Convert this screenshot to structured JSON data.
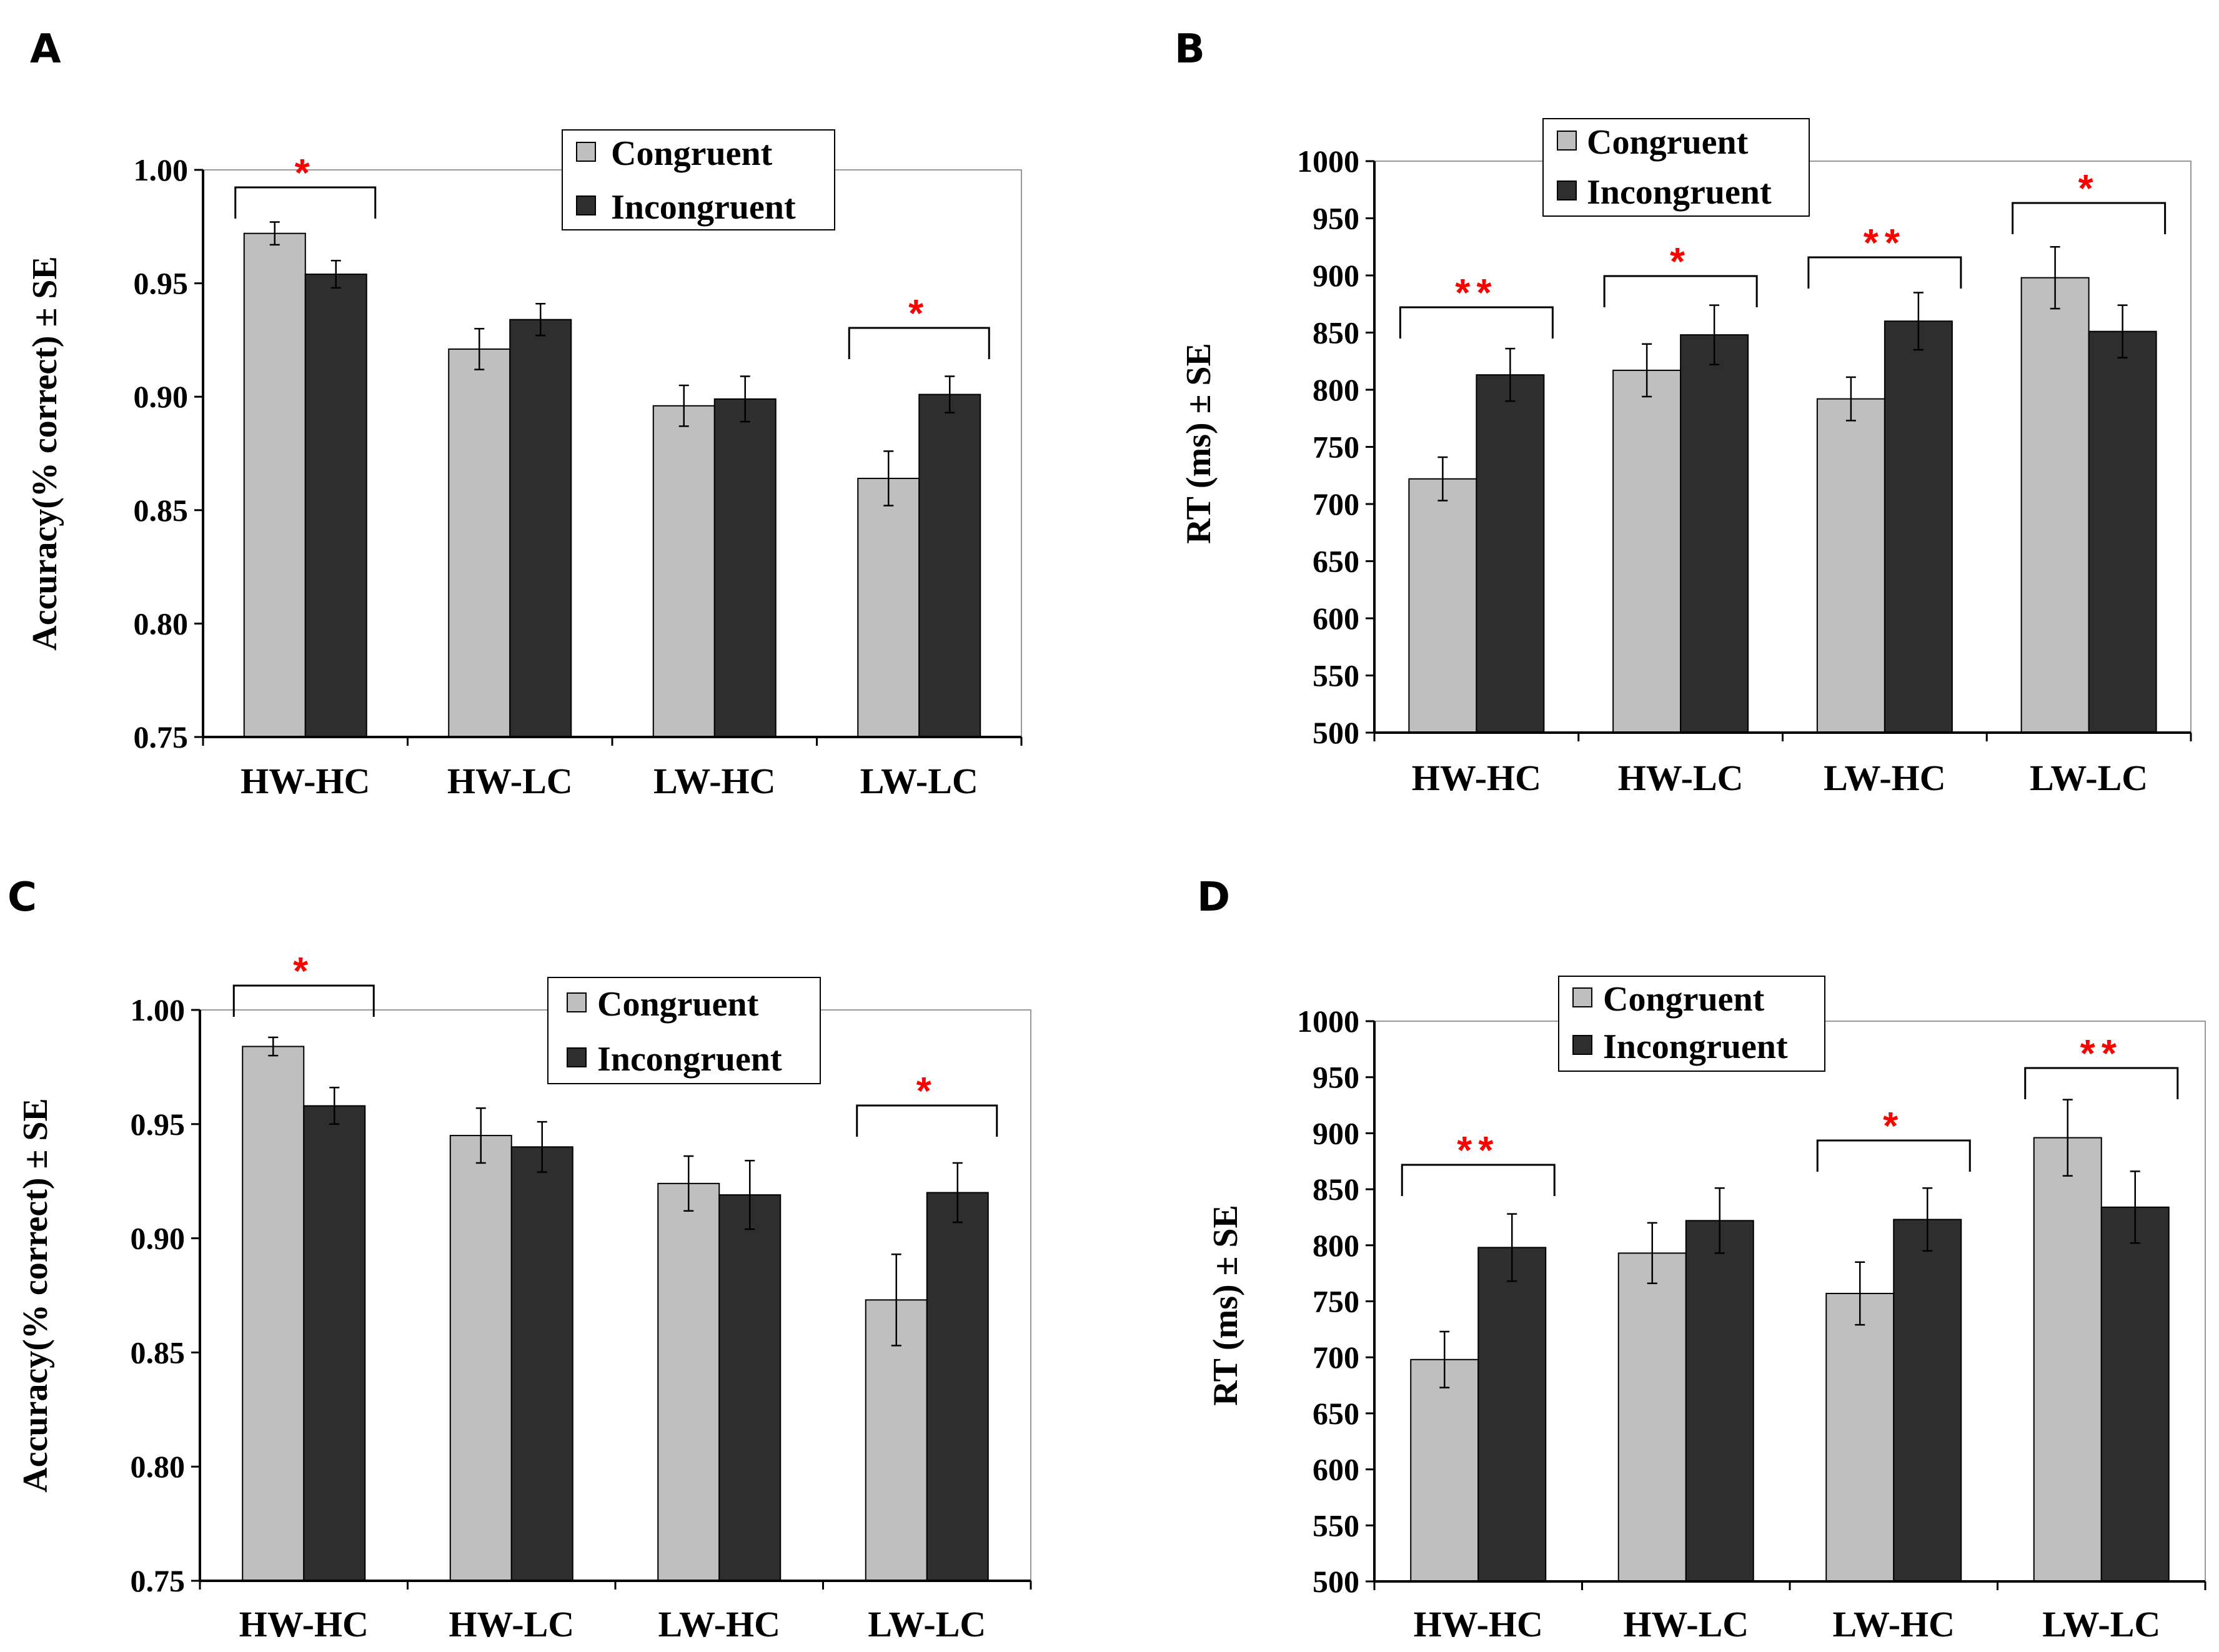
{
  "colors": {
    "congruent": "#bfbfbf",
    "incongruent": "#2e2e2e",
    "significance": "#ff0000",
    "axis": "#000000",
    "plot_border": "#999999"
  },
  "chart_data": [
    {
      "panel": "A",
      "type": "bar",
      "categories": [
        "HW-HC",
        "HW-LC",
        "LW-HC",
        "LW-LC"
      ],
      "ylabel": "Accuracy(% correct) ± SE",
      "ylim": [
        0.75,
        1.0
      ],
      "yticks": [
        "0.75",
        "0.80",
        "0.85",
        "0.90",
        "0.95",
        "1.00"
      ],
      "legend_position": "top-right",
      "series": [
        {
          "name": "Congruent",
          "values": [
            0.972,
            0.921,
            0.896,
            0.864
          ],
          "errors": [
            0.005,
            0.009,
            0.009,
            0.012
          ]
        },
        {
          "name": "Incongruent",
          "values": [
            0.954,
            0.934,
            0.899,
            0.901
          ],
          "errors": [
            0.006,
            0.007,
            0.01,
            0.008
          ]
        }
      ],
      "significance": [
        {
          "category": 0,
          "label": "*"
        },
        {
          "category": 3,
          "label": "*"
        }
      ]
    },
    {
      "panel": "B",
      "type": "bar",
      "categories": [
        "HW-HC",
        "HW-LC",
        "LW-HC",
        "LW-LC"
      ],
      "ylabel": "RT (ms) ± SE",
      "ylim": [
        500,
        1000
      ],
      "yticks": [
        "500",
        "550",
        "600",
        "650",
        "700",
        "750",
        "800",
        "850",
        "900",
        "950",
        "1000"
      ],
      "legend_position": "top-left",
      "series": [
        {
          "name": "Congruent",
          "values": [
            722,
            817,
            792,
            898
          ],
          "errors": [
            19,
            23,
            19,
            27
          ]
        },
        {
          "name": "Incongruent",
          "values": [
            813,
            848,
            860,
            851
          ],
          "errors": [
            23,
            26,
            25,
            23
          ]
        }
      ],
      "significance": [
        {
          "category": 0,
          "label": "**"
        },
        {
          "category": 1,
          "label": "*"
        },
        {
          "category": 2,
          "label": "**"
        },
        {
          "category": 3,
          "label": "*"
        }
      ]
    },
    {
      "panel": "C",
      "type": "bar",
      "categories": [
        "HW-HC",
        "HW-LC",
        "LW-HC",
        "LW-LC"
      ],
      "ylabel": "Accuracy(% correct) ± SE",
      "ylim": [
        0.75,
        1.0
      ],
      "yticks": [
        "0.75",
        "0.80",
        "0.85",
        "0.90",
        "0.95",
        "1.00"
      ],
      "legend_position": "top-right",
      "series": [
        {
          "name": "Congruent",
          "values": [
            0.984,
            0.945,
            0.924,
            0.873
          ],
          "errors": [
            0.004,
            0.012,
            0.012,
            0.02
          ]
        },
        {
          "name": "Incongruent",
          "values": [
            0.958,
            0.94,
            0.919,
            0.92
          ],
          "errors": [
            0.008,
            0.011,
            0.015,
            0.013
          ]
        }
      ],
      "significance": [
        {
          "category": 0,
          "label": "*"
        },
        {
          "category": 3,
          "label": "*"
        }
      ]
    },
    {
      "panel": "D",
      "type": "bar",
      "categories": [
        "HW-HC",
        "HW-LC",
        "LW-HC",
        "LW-LC"
      ],
      "ylabel": "RT (ms) ± SE",
      "ylim": [
        500,
        1000
      ],
      "yticks": [
        "500",
        "550",
        "600",
        "650",
        "700",
        "750",
        "800",
        "850",
        "900",
        "950",
        "1000"
      ],
      "legend_position": "top-left",
      "series": [
        {
          "name": "Congruent",
          "values": [
            698,
            793,
            757,
            896
          ],
          "errors": [
            25,
            27,
            28,
            34
          ]
        },
        {
          "name": "Incongruent",
          "values": [
            798,
            822,
            823,
            834
          ],
          "errors": [
            30,
            29,
            28,
            32
          ]
        }
      ],
      "significance": [
        {
          "category": 0,
          "label": "**"
        },
        {
          "category": 2,
          "label": "*"
        },
        {
          "category": 3,
          "label": "**"
        }
      ]
    }
  ]
}
